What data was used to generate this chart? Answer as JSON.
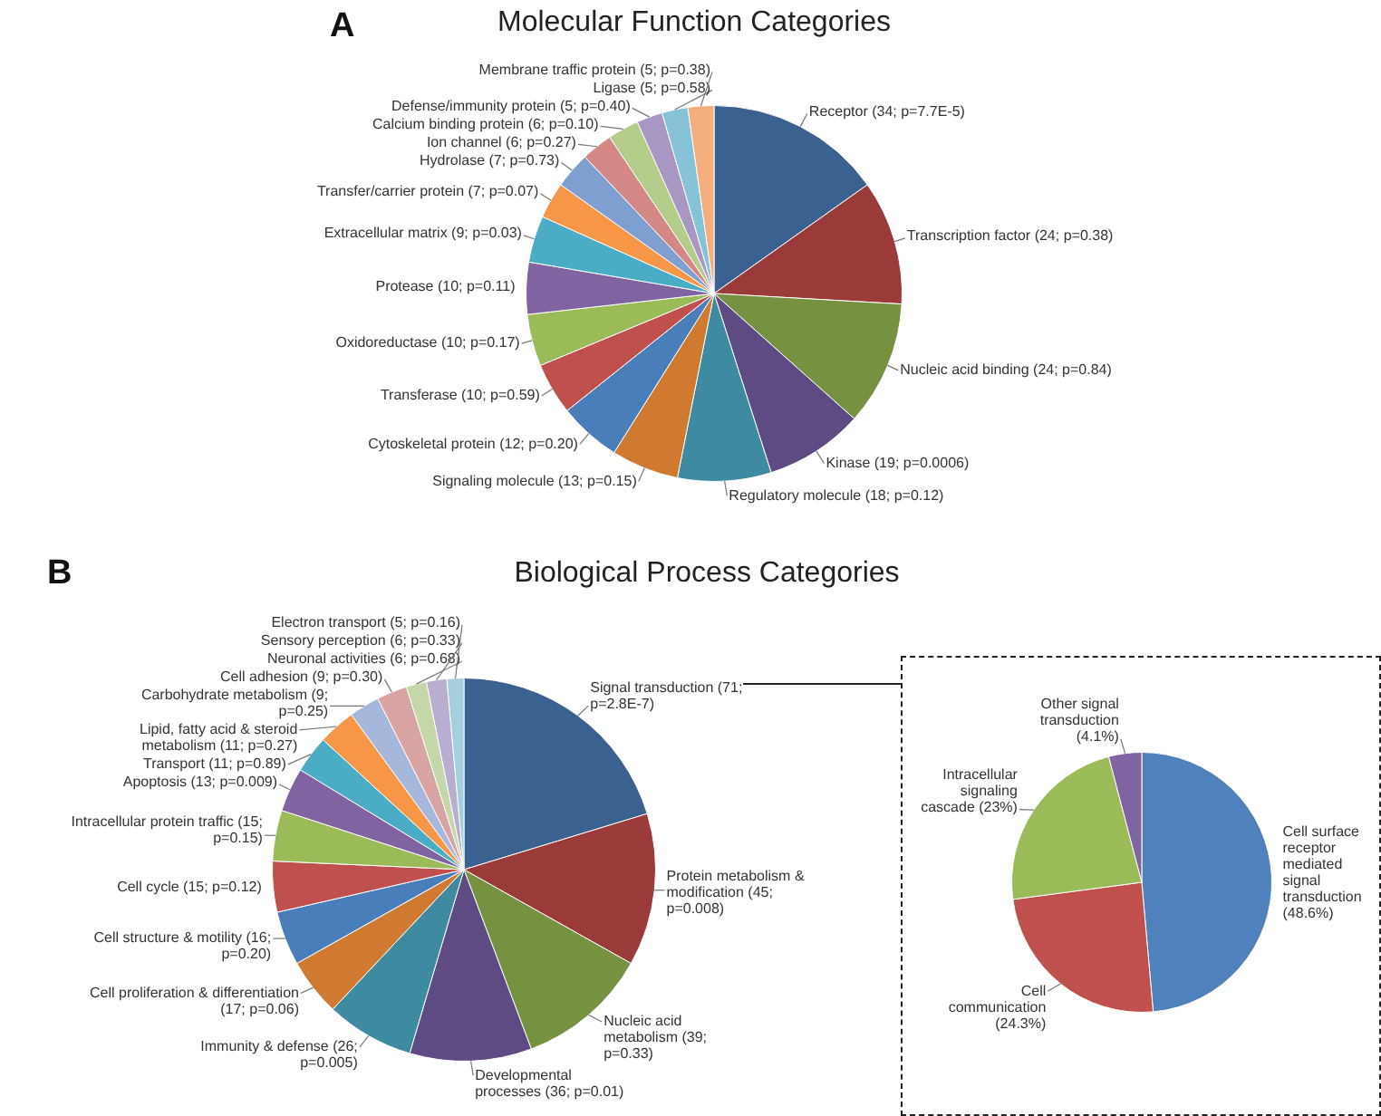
{
  "chart_data": [
    {
      "type": "pie",
      "title": "Molecular Function Categories",
      "annotations": [
        "A"
      ],
      "categories": [
        "Receptor",
        "Transcription factor",
        "Nucleic acid binding",
        "Kinase",
        "Regulatory molecule",
        "Signaling molecule",
        "Cytoskeletal protein",
        "Transferase",
        "Oxidoreductase",
        "Protease",
        "Extracellular matrix",
        "Transfer/carrier protein",
        "Hydrolase",
        "Ion channel",
        "Calcium binding protein",
        "Defense/immunity protein",
        "Ligase",
        "Membrane traffic protein"
      ],
      "values": [
        34,
        24,
        24,
        19,
        18,
        13,
        12,
        10,
        10,
        10,
        9,
        7,
        7,
        6,
        6,
        5,
        5,
        5
      ],
      "value_labels": [
        "(34; p=7.7E-5)",
        "(24; p=0.38)",
        "(24; p=0.84)",
        "(19; p=0.0006)",
        "(18; p=0.12)",
        "(13; p=0.15)",
        "(12; p=0.20)",
        "(10; p=0.59)",
        "(10; p=0.17)",
        "(10; p=0.11)",
        "(9; p=0.03)",
        "(7; p=0.07)",
        "(7; p=0.73)",
        "(6; p=0.27)",
        "(6; p=0.10)",
        "(5; p=0.40)",
        "(5; p=0.58)",
        "(5; p=0.38)"
      ],
      "colors": [
        "#3b6190",
        "#9a3b39",
        "#76913f",
        "#5f4b83",
        "#3e8aa1",
        "#cf7a30",
        "#4a7ebb",
        "#c0504d",
        "#9bbb59",
        "#8064a2",
        "#4bacc6",
        "#f79646",
        "#7f9fd0",
        "#d48886",
        "#b5cd8a",
        "#a897c2",
        "#86c3d6",
        "#f4ad7c"
      ]
    },
    {
      "type": "pie",
      "title": "Biological Process Categories",
      "annotations": [
        "B"
      ],
      "categories": [
        "Signal transduction",
        "Protein metabolism & modification",
        "Nucleic acid metabolism",
        "Developmental processes",
        "Immunity & defense",
        "Cell proliferation & differentiation",
        "Cell structure & motility",
        "Cell cycle",
        "Intracellular protein traffic",
        "Apoptosis",
        "Transport",
        "Lipid, fatty acid & steroid metabolism",
        "Carbohydrate metabolism",
        "Cell adhesion",
        "Neuronal activities",
        "Sensory perception",
        "Electron transport"
      ],
      "values": [
        71,
        45,
        39,
        36,
        26,
        17,
        16,
        15,
        15,
        13,
        11,
        11,
        9,
        9,
        6,
        6,
        5
      ],
      "value_labels": [
        "(71; p=2.8E-7)",
        "(45; p=0.008)",
        "(39; p=0.33)",
        "(36; p=0.01)",
        "(26; p=0.005)",
        "(17; p=0.06)",
        "(16; p=0.20)",
        "(15; p=0.12)",
        "(15; p=0.15)",
        "(13; p=0.009)",
        "(11; p=0.89)",
        "(11; p=0.27)",
        "(9; p=0.25)",
        "(9; p=0.30)",
        "(6; p=0.68)",
        "(6; p=0.33)",
        "(5; p=0.16)"
      ],
      "colors": [
        "#3b6190",
        "#9a3b39",
        "#76913f",
        "#5f4b83",
        "#3e8aa1",
        "#cf7a30",
        "#4a7ebb",
        "#c0504d",
        "#9bbb59",
        "#8064a2",
        "#4bacc6",
        "#f79646",
        "#a5b8dc",
        "#d9a5a4",
        "#c5d6a9",
        "#b9aecf",
        "#a5cfdc"
      ]
    },
    {
      "type": "pie",
      "categories": [
        "Cell surface receptor mediated signal transduction",
        "Cell communication",
        "Intracellular signaling cascade",
        "Other signal transduction"
      ],
      "values": [
        48.6,
        24.3,
        23,
        4.1
      ],
      "value_labels": [
        "(48.6%)",
        "(24.3%)",
        "(23%)",
        "(4.1%)"
      ],
      "colors": [
        "#4f81bd",
        "#c0504d",
        "#9bbb59",
        "#8064a2"
      ]
    }
  ]
}
